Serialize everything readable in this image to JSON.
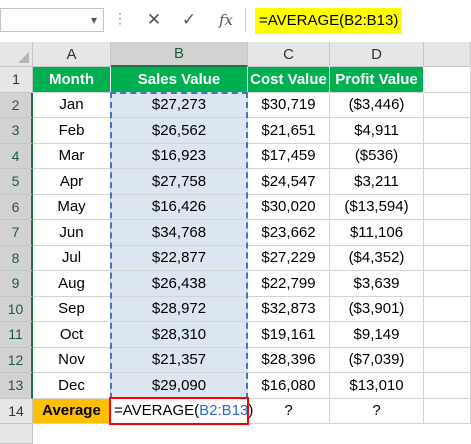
{
  "formula_bar": {
    "name_box": "",
    "cancel_icon": "✕",
    "enter_icon": "✓",
    "fx_label": "fx",
    "formula": "=AVERAGE(B2:B13)"
  },
  "columns": [
    "A",
    "B",
    "C",
    "D"
  ],
  "row_numbers": [
    "1",
    "2",
    "3",
    "4",
    "5",
    "6",
    "7",
    "8",
    "9",
    "10",
    "11",
    "12",
    "13",
    "14"
  ],
  "headers": [
    "Month",
    "Sales Value",
    "Cost Value",
    "Profit Value"
  ],
  "rows": [
    [
      "Jan",
      "$27,273",
      "$30,719",
      "($3,446)"
    ],
    [
      "Feb",
      "$26,562",
      "$21,651",
      "$4,911"
    ],
    [
      "Mar",
      "$16,923",
      "$17,459",
      "($536)"
    ],
    [
      "Apr",
      "$27,758",
      "$24,547",
      "$3,211"
    ],
    [
      "May",
      "$16,426",
      "$30,020",
      "($13,594)"
    ],
    [
      "Jun",
      "$34,768",
      "$23,662",
      "$11,106"
    ],
    [
      "Jul",
      "$22,877",
      "$27,229",
      "($4,352)"
    ],
    [
      "Aug",
      "$26,438",
      "$22,799",
      "$3,639"
    ],
    [
      "Sep",
      "$28,972",
      "$32,873",
      "($3,901)"
    ],
    [
      "Oct",
      "$28,310",
      "$19,161",
      "$9,149"
    ],
    [
      "Nov",
      "$21,357",
      "$28,396",
      "($7,039)"
    ],
    [
      "Dec",
      "$29,090",
      "$16,080",
      "$13,010"
    ]
  ],
  "summary": {
    "label": "Average",
    "formula_prefix": "=AVERAGE(",
    "formula_ref": "B2:B13",
    "formula_suffix": ")",
    "cost": "?",
    "profit": "?"
  },
  "colors": {
    "header_fill": "#00b050",
    "label_fill": "#ffc000",
    "formula_highlight": "#ffff00",
    "selection_fill": "#dce6f1",
    "range_reference": "#2b6cc4",
    "edit_box_border": "#ff0000"
  }
}
